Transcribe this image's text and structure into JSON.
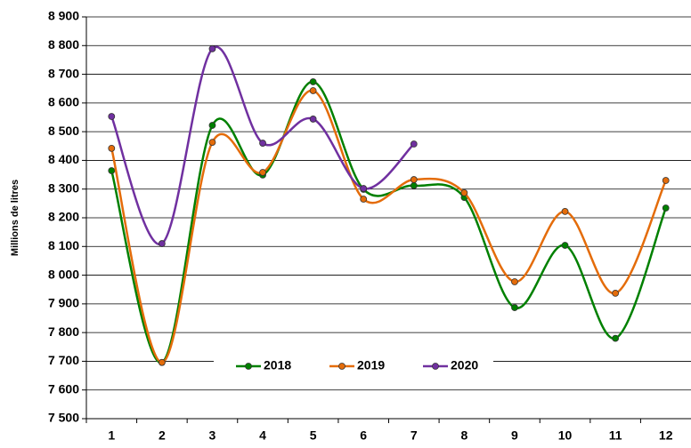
{
  "chart_data": {
    "type": "line",
    "y_label": "Millions de litres",
    "categories": [
      "1",
      "2",
      "3",
      "4",
      "5",
      "6",
      "7",
      "8",
      "9",
      "10",
      "11",
      "12"
    ],
    "series": [
      {
        "name": "2018",
        "color": "#008000",
        "values": [
          8364,
          7696,
          8522,
          8349,
          8674,
          8299,
          8312,
          8271,
          7887,
          8104,
          7780,
          8234
        ]
      },
      {
        "name": "2019",
        "color": "#e46c0a",
        "values": [
          8442,
          7696,
          8463,
          8358,
          8643,
          8265,
          8333,
          8287,
          7977,
          8222,
          7937,
          8330
        ]
      },
      {
        "name": "2020",
        "color": "#7030a0",
        "values": [
          8553,
          8110,
          8789,
          8460,
          8544,
          8302,
          8457,
          null,
          null,
          null,
          null,
          null
        ]
      }
    ],
    "ylim": [
      7500,
      8900
    ],
    "yticks": [
      {
        "value": 7500,
        "label": "7 500"
      },
      {
        "value": 7600,
        "label": "7 600"
      },
      {
        "value": 7700,
        "label": "7 700"
      },
      {
        "value": 7800,
        "label": "7 800"
      },
      {
        "value": 7900,
        "label": "7 900"
      },
      {
        "value": 8000,
        "label": "8 000"
      },
      {
        "value": 8100,
        "label": "8 100"
      },
      {
        "value": 8200,
        "label": "8 200"
      },
      {
        "value": 8300,
        "label": "8 300"
      },
      {
        "value": 8400,
        "label": "8 400"
      },
      {
        "value": 8500,
        "label": "8 500"
      },
      {
        "value": 8600,
        "label": "8 600"
      },
      {
        "value": 8700,
        "label": "8 700"
      },
      {
        "value": 8800,
        "label": "8 800"
      },
      {
        "value": 8900,
        "label": "8 900"
      }
    ],
    "grid": true,
    "smooth": true
  }
}
